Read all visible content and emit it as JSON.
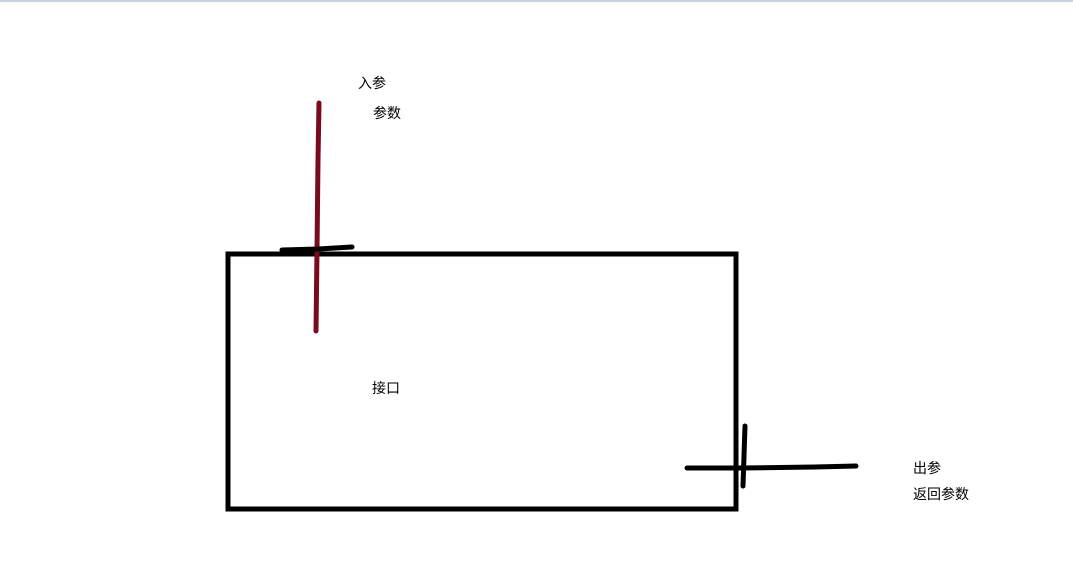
{
  "diagram": {
    "input": {
      "title": "入参",
      "subtitle": "参数"
    },
    "box": {
      "label": "接口"
    },
    "output": {
      "title": "出参",
      "subtitle": "返回参数"
    }
  },
  "colors": {
    "background": "#ffffff",
    "box_stroke": "#000000",
    "input_line": "#7a0a1e",
    "output_line": "#000000",
    "top_border": "#c9d3e0"
  }
}
